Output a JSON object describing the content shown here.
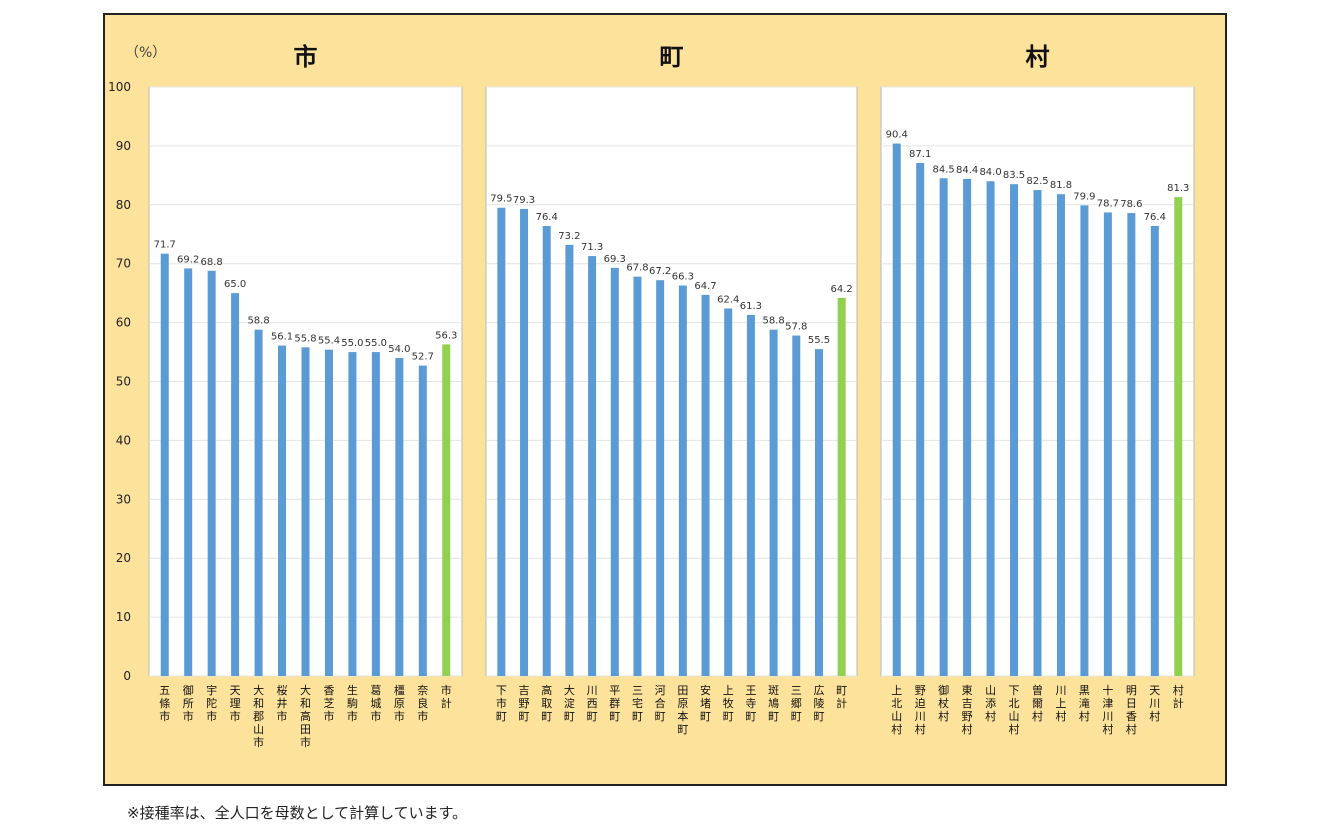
{
  "footnote": "※接種率は、全人口を母数として計算しています。",
  "chart_data": {
    "type": "bar",
    "unit_label": "（%）",
    "ylim": [
      0,
      100
    ],
    "yticks": [
      0,
      10,
      20,
      30,
      40,
      50,
      60,
      70,
      80,
      90,
      100
    ],
    "grid": true,
    "colors": {
      "bar": "#5b9bd5",
      "total": "#92d050",
      "panel_bg": "#ffffff",
      "frame_bg": "#fde29b"
    },
    "panels": [
      {
        "title": "市",
        "categories": [
          "五條市",
          "御所市",
          "宇陀市",
          "天理市",
          "大和郡山市",
          "桜井市",
          "大和高田市",
          "香芝市",
          "生駒市",
          "葛城市",
          "橿原市",
          "奈良市",
          "市計"
        ],
        "values": [
          71.7,
          69.2,
          68.8,
          65.0,
          58.8,
          56.1,
          55.8,
          55.4,
          55.0,
          55.0,
          54.0,
          52.7,
          56.3
        ],
        "labels": [
          "71.7",
          "69.2",
          "68.8",
          "65.0",
          "58.8",
          "56.1",
          "55.8",
          "55.4",
          "55.0",
          "55.0",
          "54.0",
          "52.7",
          "56.3"
        ],
        "highlight_last": true
      },
      {
        "title": "町",
        "categories": [
          "下市町",
          "吉野町",
          "高取町",
          "大淀町",
          "川西町",
          "平群町",
          "三宅町",
          "河合町",
          "田原本町",
          "安堵町",
          "上牧町",
          "王寺町",
          "斑鳩町",
          "三郷町",
          "広陵町",
          "町計"
        ],
        "values": [
          79.5,
          79.3,
          76.4,
          73.2,
          71.3,
          69.3,
          67.8,
          67.2,
          66.3,
          64.7,
          62.4,
          61.3,
          58.8,
          57.8,
          55.5,
          64.2
        ],
        "labels": [
          "79.5",
          "79.3",
          "76.4",
          "73.2",
          "71.3",
          "69.3",
          "67.8",
          "67.2",
          "66.3",
          "64.7",
          "62.4",
          "61.3",
          "58.8",
          "57.8",
          "55.5",
          "64.2"
        ],
        "highlight_last": true
      },
      {
        "title": "村",
        "categories": [
          "上北山村",
          "野迫川村",
          "御杖村",
          "東吉野村",
          "山添村",
          "下北山村",
          "曽爾村",
          "川上村",
          "黒滝村",
          "十津川村",
          "明日香村",
          "天川村",
          "村計"
        ],
        "values": [
          90.4,
          87.1,
          84.5,
          84.4,
          84.0,
          83.5,
          82.5,
          81.8,
          79.9,
          78.7,
          78.6,
          76.4,
          81.3
        ],
        "labels": [
          "90.4",
          "87.1",
          "84.5",
          "84.4",
          "84.0",
          "83.5",
          "82.5",
          "81.8",
          "79.9",
          "78.7",
          "78.6",
          "76.4",
          "81.3"
        ],
        "highlight_last": true
      }
    ]
  }
}
